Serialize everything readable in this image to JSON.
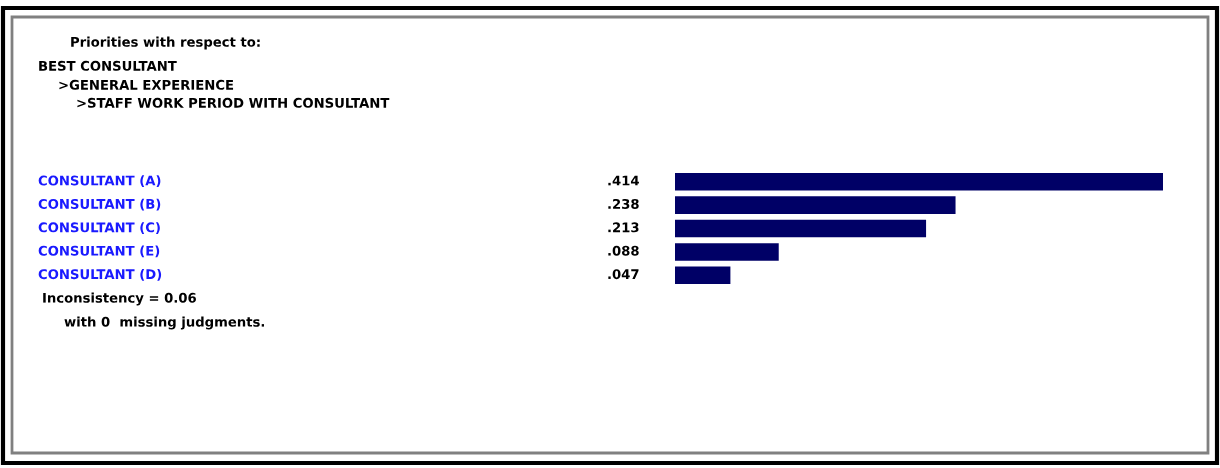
{
  "chart_data": {
    "type": "bar",
    "orientation": "horizontal",
    "title": "Priorities with respect to:",
    "categories": [
      "CONSULTANT (A)",
      "CONSULTANT (B)",
      "CONSULTANT (C)",
      "CONSULTANT (E)",
      "CONSULTANT (D)"
    ],
    "values": [
      0.414,
      0.238,
      0.213,
      0.088,
      0.047
    ],
    "value_labels": [
      ".414",
      ".238",
      ".213",
      ".088",
      ".047"
    ],
    "color": "#000066",
    "annotations": [
      "BEST CONSULTANT",
      ">GENERAL EXPERIENCE",
      ">STAFF WORK PERIOD WITH CONSULTANT",
      "Inconsistency = 0.06",
      "with 0  missing judgments."
    ],
    "data_labels": true
  }
}
